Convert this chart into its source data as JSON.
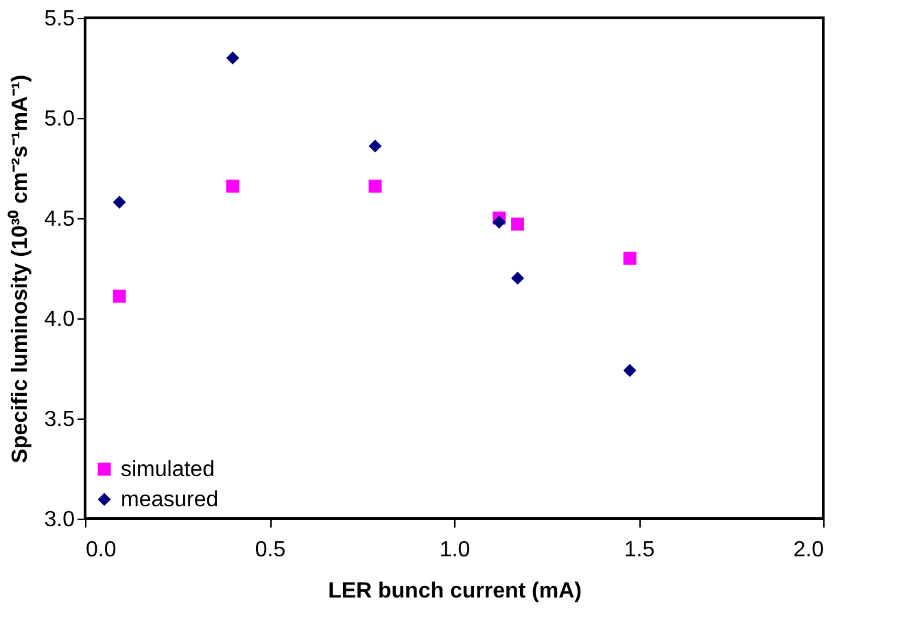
{
  "chart_data": {
    "type": "scatter",
    "xlabel": "LER bunch current (mA)",
    "ylabel": "Specific luminosity (10³⁰ cm⁻²s⁻¹mA⁻¹)",
    "series": [
      {
        "name": "simulated",
        "color": "#ff00ff",
        "marker": "square",
        "x": [
          0.093,
          0.4,
          0.786,
          1.122,
          1.172,
          1.476
        ],
        "values": [
          4.11,
          4.66,
          4.66,
          4.5,
          4.47,
          4.3
        ]
      },
      {
        "name": "measured",
        "color": "#000080",
        "marker": "diamond",
        "x": [
          0.093,
          0.4,
          0.786,
          1.122,
          1.172,
          1.476
        ],
        "values": [
          4.58,
          5.3,
          4.86,
          4.48,
          4.2,
          3.74
        ]
      }
    ],
    "xlim": [
      0,
      2
    ],
    "xticks": [
      {
        "value": 0,
        "label": "0.0"
      },
      0.5,
      {
        "value": 1,
        "label": "1.0"
      },
      1.5,
      {
        "value": 2,
        "label": "2.0"
      }
    ],
    "ylim": [
      3,
      5.5
    ],
    "yticks": [
      {
        "value": 3,
        "label": "3.0"
      },
      3.5,
      {
        "value": 4,
        "label": "4.0"
      },
      4.5,
      {
        "value": 5,
        "label": "5.0"
      },
      5.5
    ],
    "grid": false,
    "legend": "bottom left"
  }
}
